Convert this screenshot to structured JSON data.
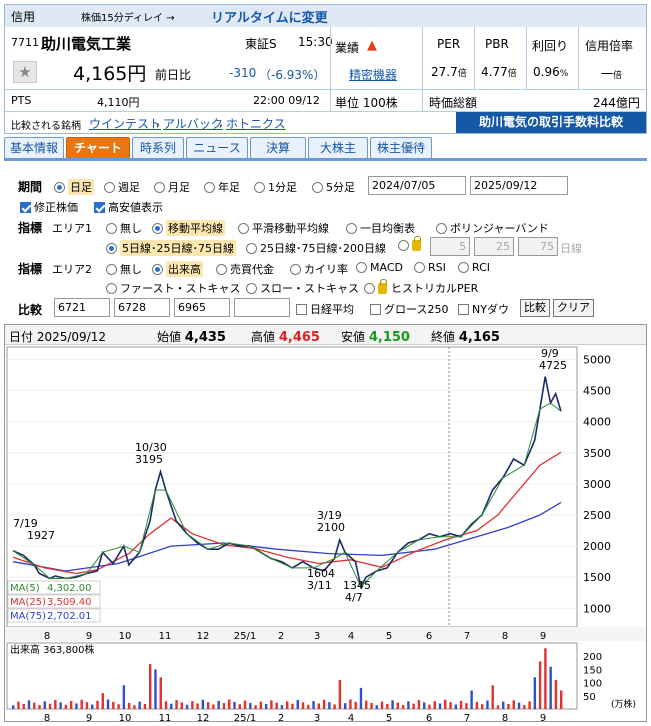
{
  "header": {
    "category": "信用",
    "delay_note": "株価15分ディレイ →",
    "realtime_link": "リアルタイムに変更",
    "code": "7711",
    "company": "助川電気工業",
    "market": "東証S",
    "time": "15:30",
    "gyoseki_label": "業績",
    "industry_link": "精密機器",
    "price": "4,165円",
    "change_label": "前日比",
    "change": "-310",
    "change_pct": "（-6.93%）",
    "pts_label": "PTS",
    "pts_price": "4,110円",
    "pts_datetime": "22:00  09/12",
    "unit_label": "単位 100株",
    "compare_label": "比較される銘柄",
    "compare_links": [
      "ウインテスト",
      "アルバック",
      "ホトニクス"
    ],
    "per_label": "PER",
    "pbr_label": "PBR",
    "yield_label": "利回り",
    "margin_label": "信用倍率",
    "per": "27.7",
    "pbr": "4.77",
    "yield": "0.96",
    "margin": "一",
    "per_unit": "倍",
    "pbr_unit": "倍",
    "yield_unit": "%",
    "margin_unit": "倍",
    "mcap_label": "時価総額",
    "mcap": "244億円",
    "fee_banner": "助川電気の取引手数料比較"
  },
  "tabs": [
    "基本情報",
    "チャート",
    "時系列",
    "ニュース",
    "決算",
    "大株主",
    "株主優待"
  ],
  "active_tab": 1,
  "controls": {
    "period_label": "期間",
    "periods": [
      "日足",
      "週足",
      "月足",
      "年足",
      "1分足",
      "5分足"
    ],
    "date_from": "2024/07/05",
    "date_to": "2025/09/12",
    "adjusted": "修正株価",
    "high_low": "高安値表示",
    "indicator_label": "指標",
    "area1_label": "エリア1",
    "area1_opts": [
      "無し",
      "移動平均線",
      "平滑移動平均線",
      "一目均衡表",
      "ボリンジャーバンド"
    ],
    "ma_sets": [
      "5日線･25日線･75日線",
      "25日線･75日線･200日線"
    ],
    "ma_custom": [
      "5",
      "25",
      "75"
    ],
    "ma_unit": "日線",
    "area2_label": "エリア2",
    "area2_opts": [
      "無し",
      "出来高",
      "売買代金",
      "カイリ率",
      "MACD",
      "RSI",
      "RCI"
    ],
    "area2_opts2": [
      "ファースト・ストキャス",
      "スロー・ストキャス",
      "ヒストリカルPER"
    ],
    "compare_label": "比較",
    "compare_codes": [
      "6721",
      "6728",
      "6965",
      ""
    ],
    "index_opts": [
      "日経平均",
      "グロース250",
      "NYダウ"
    ],
    "compare_btn": "比較",
    "clear_btn": "クリア"
  },
  "ohlc_bar": {
    "date_label": "日付",
    "date": "2025/09/12",
    "open_label": "始値",
    "open": "4,435",
    "high_label": "高値",
    "high": "4,465",
    "low_label": "安値",
    "low": "4,150",
    "close_label": "終値",
    "close": "4,165"
  },
  "chart_data": {
    "type": "line",
    "y_ticks": [
      "5000",
      "4500",
      "4000",
      "3500",
      "3000",
      "2500",
      "2000",
      "1500",
      "1000"
    ],
    "x_ticks": [
      "8",
      "9",
      "10",
      "11",
      "12",
      "25/1",
      "2",
      "3",
      "4",
      "5",
      "6",
      "7",
      "8",
      "9"
    ],
    "series": [
      {
        "name": "MA(5)",
        "value": "4,302.00",
        "color": "#2e8b2e"
      },
      {
        "name": "MA(25)",
        "value": "3,509.40",
        "color": "#e03030"
      },
      {
        "name": "MA(75)",
        "value": "2,702.01",
        "color": "#3040c8"
      }
    ],
    "price_path": [
      [
        0,
        1927
      ],
      [
        2,
        1850
      ],
      [
        4,
        1700
      ],
      [
        5,
        1560
      ],
      [
        7,
        1480
      ],
      [
        8,
        1520
      ],
      [
        10,
        1480
      ],
      [
        12,
        1500
      ],
      [
        14,
        1560
      ],
      [
        16,
        1600
      ],
      [
        17,
        1900
      ],
      [
        19,
        1720
      ],
      [
        21,
        2000
      ],
      [
        22,
        1700
      ],
      [
        24,
        1900
      ],
      [
        26,
        2400
      ],
      [
        27,
        2900
      ],
      [
        28,
        3195
      ],
      [
        29,
        2900
      ],
      [
        31,
        2400
      ],
      [
        33,
        2200
      ],
      [
        35,
        2050
      ],
      [
        37,
        1950
      ],
      [
        39,
        1950
      ],
      [
        41,
        2050
      ],
      [
        43,
        2000
      ],
      [
        45,
        2000
      ],
      [
        47,
        1900
      ],
      [
        49,
        1800
      ],
      [
        51,
        1750
      ],
      [
        53,
        1650
      ],
      [
        55,
        1750
      ],
      [
        57,
        1650
      ],
      [
        59,
        1604
      ],
      [
        61,
        1800
      ],
      [
        62,
        2100
      ],
      [
        63,
        1900
      ],
      [
        65,
        1750
      ],
      [
        66,
        1345
      ],
      [
        67,
        1500
      ],
      [
        69,
        1600
      ],
      [
        71,
        1650
      ],
      [
        73,
        1900
      ],
      [
        75,
        2050
      ],
      [
        77,
        2100
      ],
      [
        79,
        2200
      ],
      [
        81,
        2150
      ],
      [
        83,
        2200
      ],
      [
        85,
        2150
      ],
      [
        87,
        2350
      ],
      [
        89,
        2500
      ],
      [
        91,
        2900
      ],
      [
        93,
        3100
      ],
      [
        95,
        3400
      ],
      [
        97,
        3300
      ],
      [
        99,
        3700
      ],
      [
        100,
        4200
      ],
      [
        101,
        4725
      ],
      [
        102,
        4300
      ],
      [
        103,
        4450
      ],
      [
        104,
        4165
      ]
    ],
    "ma25_path": [
      [
        0,
        1820
      ],
      [
        6,
        1650
      ],
      [
        12,
        1560
      ],
      [
        16,
        1620
      ],
      [
        22,
        1880
      ],
      [
        26,
        2200
      ],
      [
        30,
        2450
      ],
      [
        34,
        2200
      ],
      [
        40,
        2020
      ],
      [
        46,
        1960
      ],
      [
        52,
        1820
      ],
      [
        58,
        1720
      ],
      [
        64,
        1780
      ],
      [
        70,
        1660
      ],
      [
        76,
        1900
      ],
      [
        82,
        2100
      ],
      [
        88,
        2250
      ],
      [
        92,
        2500
      ],
      [
        96,
        2900
      ],
      [
        100,
        3300
      ],
      [
        104,
        3509
      ]
    ],
    "ma75_path": [
      [
        0,
        1750
      ],
      [
        10,
        1600
      ],
      [
        20,
        1720
      ],
      [
        30,
        2000
      ],
      [
        40,
        2050
      ],
      [
        50,
        1950
      ],
      [
        60,
        1880
      ],
      [
        70,
        1850
      ],
      [
        80,
        1950
      ],
      [
        88,
        2150
      ],
      [
        94,
        2300
      ],
      [
        100,
        2500
      ],
      [
        104,
        2702
      ]
    ],
    "annotations": [
      {
        "label": "7/19",
        "value": "1927"
      },
      {
        "label": "10/30",
        "value": "3195"
      },
      {
        "label": "3/19",
        "value": "2100"
      },
      {
        "label": "1604",
        "value": "3/11"
      },
      {
        "label": "1345",
        "value": "4/7"
      },
      {
        "label": "9/9",
        "value": "4725"
      }
    ],
    "volume_label": "出来高",
    "volume_value": "363,800株",
    "volume_ticks": [
      "200",
      "150",
      "100",
      "50"
    ],
    "volume_unit": "(万株)",
    "ylim": [
      700,
      5200
    ]
  }
}
